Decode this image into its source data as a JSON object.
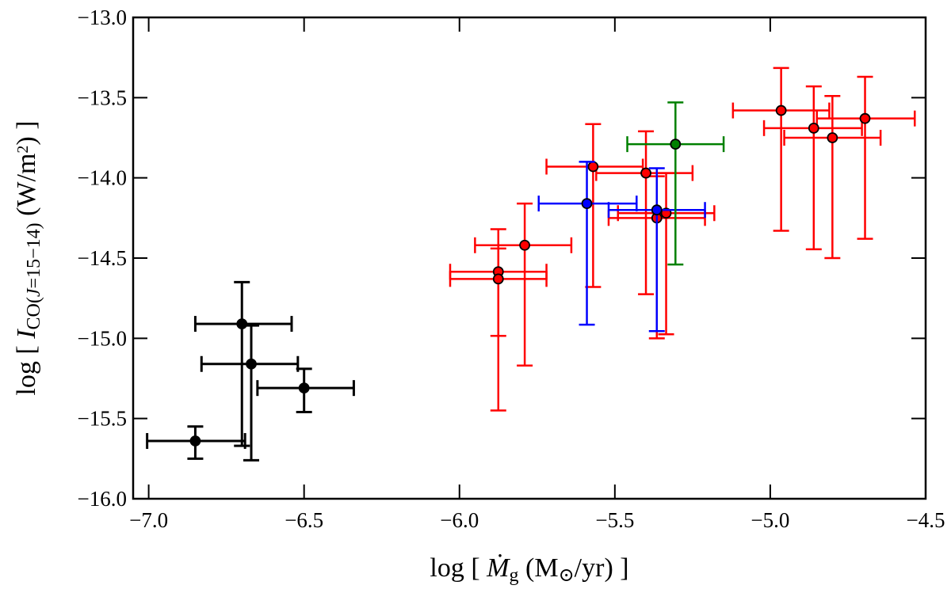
{
  "chart_data": {
    "type": "scatter",
    "title": "",
    "xlabel": "log [Ṁg (M⊙/yr)]",
    "xlabel_parts": [
      {
        "t": "log [ "
      },
      {
        "t": "Ṁ",
        "italic": true
      },
      {
        "t": "g",
        "sub": true
      },
      {
        "t": " (M"
      },
      {
        "t": "⊙",
        "sub": true
      },
      {
        "t": "/yr) ]"
      }
    ],
    "ylabel": "log [I CO(J=15−14) (W/m²)]",
    "ylabel_parts": [
      {
        "t": "log [ "
      },
      {
        "t": "I",
        "italic": true
      },
      {
        "t": "CO(",
        "sub": true
      },
      {
        "t": "J",
        "sub": true,
        "italic": true
      },
      {
        "t": "=15−14)",
        "sub": true
      },
      {
        "t": " (W/m"
      },
      {
        "t": "2",
        "sup": true
      },
      {
        "t": ") ]"
      }
    ],
    "xlim": [
      -7.05,
      -4.5
    ],
    "ylim": [
      -16.0,
      -13.0
    ],
    "xticks": [
      -7.0,
      -6.5,
      -6.0,
      -5.5,
      -5.0,
      -4.5
    ],
    "xtick_labels": [
      "−7.0",
      "−6.5",
      "−6.0",
      "−5.5",
      "−5.0",
      "−4.5"
    ],
    "yticks": [
      -16.0,
      -15.5,
      -15.0,
      -14.5,
      -14.0,
      -13.5,
      -13.0
    ],
    "ytick_labels": [
      "−16.0",
      "−15.5",
      "−15.0",
      "−14.5",
      "−14.0",
      "−13.5",
      "−13.0"
    ],
    "grid": false,
    "series": [
      {
        "color": "#000000",
        "points": [
          {
            "x": -6.85,
            "y": -15.64,
            "xlo": -7.005,
            "xhi": -6.69,
            "ylo": -15.75,
            "yhi": -15.55
          },
          {
            "x": -6.7,
            "y": -14.91,
            "xlo": -6.85,
            "xhi": -6.54,
            "ylo": -15.67,
            "yhi": -14.65
          },
          {
            "x": -6.67,
            "y": -15.16,
            "xlo": -6.83,
            "xhi": -6.52,
            "ylo": -15.76,
            "yhi": -14.92
          },
          {
            "x": -6.5,
            "y": -15.31,
            "xlo": -6.65,
            "xhi": -6.34,
            "ylo": -15.46,
            "yhi": -15.19
          }
        ]
      },
      {
        "color": "#ff0000",
        "points": [
          {
            "x": -5.875,
            "y": -14.585,
            "xlo": -6.03,
            "xhi": -5.72,
            "ylo": -14.985,
            "yhi": -14.32
          },
          {
            "x": -5.875,
            "y": -14.63,
            "xlo": -6.03,
            "xhi": -5.72,
            "ylo": -15.45,
            "yhi": -14.44
          },
          {
            "x": -5.79,
            "y": -14.42,
            "xlo": -5.95,
            "xhi": -5.64,
            "ylo": -15.17,
            "yhi": -14.16
          },
          {
            "x": -5.57,
            "y": -13.93,
            "xlo": -5.72,
            "xhi": -5.41,
            "ylo": -14.68,
            "yhi": -13.665
          },
          {
            "x": -5.4,
            "y": -13.97,
            "xlo": -5.56,
            "xhi": -5.25,
            "ylo": -14.725,
            "yhi": -13.71
          },
          {
            "x": -5.335,
            "y": -14.22,
            "xlo": -5.49,
            "xhi": -5.18,
            "ylo": -14.975,
            "yhi": -13.97
          },
          {
            "x": -5.365,
            "y": -14.25,
            "xlo": -5.52,
            "xhi": -5.21,
            "ylo": -15.0,
            "yhi": -13.99
          },
          {
            "x": -4.965,
            "y": -13.58,
            "xlo": -5.12,
            "xhi": -4.81,
            "ylo": -14.33,
            "yhi": -13.315
          },
          {
            "x": -4.86,
            "y": -13.69,
            "xlo": -5.02,
            "xhi": -4.705,
            "ylo": -14.445,
            "yhi": -13.43
          },
          {
            "x": -4.8,
            "y": -13.75,
            "xlo": -4.955,
            "xhi": -4.645,
            "ylo": -14.5,
            "yhi": -13.49
          },
          {
            "x": -4.695,
            "y": -13.63,
            "xlo": -4.85,
            "xhi": -4.535,
            "ylo": -14.38,
            "yhi": -13.37
          }
        ]
      },
      {
        "color": "#0000ff",
        "points": [
          {
            "x": -5.59,
            "y": -14.16,
            "xlo": -5.745,
            "xhi": -5.43,
            "ylo": -14.915,
            "yhi": -13.9
          },
          {
            "x": -5.365,
            "y": -14.2,
            "xlo": -5.52,
            "xhi": -5.21,
            "ylo": -14.955,
            "yhi": -13.94
          }
        ]
      },
      {
        "color": "#008000",
        "points": [
          {
            "x": -5.305,
            "y": -13.79,
            "xlo": -5.46,
            "xhi": -5.15,
            "ylo": -14.54,
            "yhi": -13.53
          }
        ]
      }
    ]
  }
}
